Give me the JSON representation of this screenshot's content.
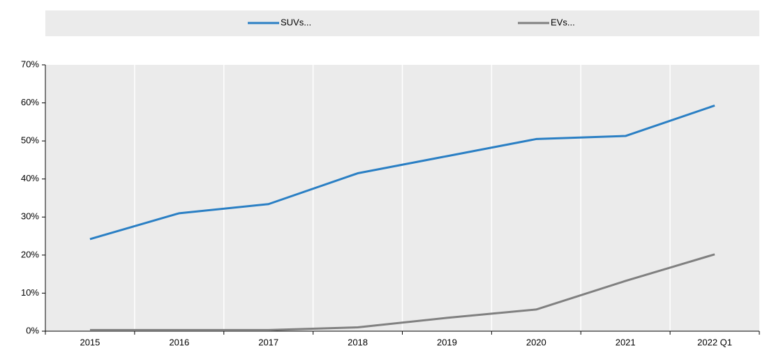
{
  "chart_data": {
    "type": "line",
    "categories": [
      "2015",
      "2016",
      "2017",
      "2018",
      "2019",
      "2020",
      "2021",
      "2022 Q1"
    ],
    "series": [
      {
        "name": "SUVs...",
        "color": "#2a7fc4",
        "values": [
          24.2,
          31,
          33.4,
          41.5,
          46,
          50.5,
          51.3,
          59.3
        ]
      },
      {
        "name": "EVs...",
        "color": "#808080",
        "values": [
          0.3,
          0.3,
          0.3,
          1,
          3.5,
          5.7,
          13.2,
          20.2
        ]
      }
    ],
    "ylim": [
      0,
      70
    ],
    "yticks": [
      {
        "value": 0,
        "label": "0%"
      },
      {
        "value": 10,
        "label": "10%"
      },
      {
        "value": 20,
        "label": "20%"
      },
      {
        "value": 30,
        "label": "30%"
      },
      {
        "value": 40,
        "label": "40%"
      },
      {
        "value": 50,
        "label": "50%"
      },
      {
        "value": 60,
        "label": "60%"
      },
      {
        "value": 70,
        "label": "70%"
      }
    ],
    "legend": "top"
  }
}
